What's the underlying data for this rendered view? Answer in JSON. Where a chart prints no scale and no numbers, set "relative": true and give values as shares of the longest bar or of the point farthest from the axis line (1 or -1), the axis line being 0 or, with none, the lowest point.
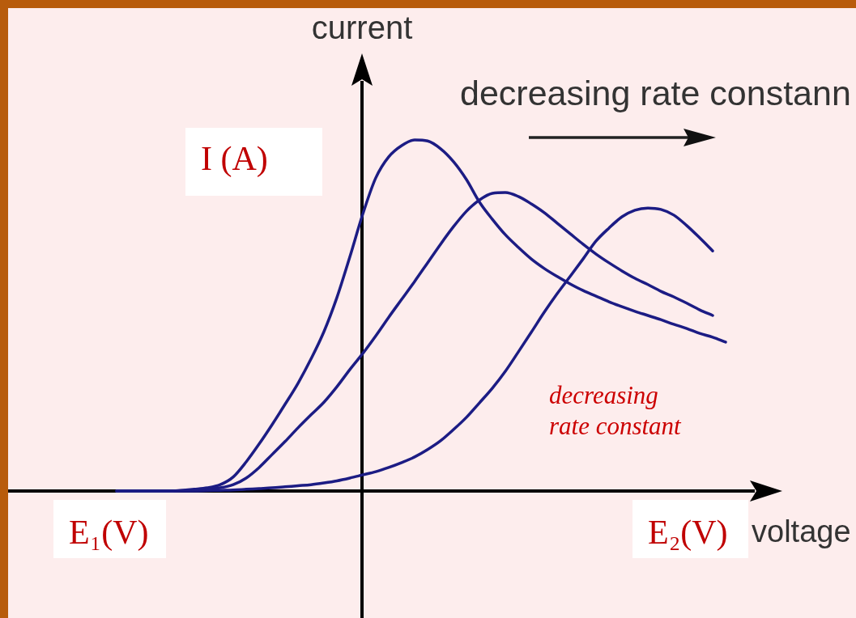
{
  "chart_data": {
    "type": "line",
    "relative": true,
    "xlabel": "voltage",
    "ylabel": "current",
    "marker": "none",
    "tick_labels": false,
    "annotations": [
      "decreasing rate constann",
      "I (A)",
      "E₁(V)",
      "E₂(V)",
      "decreasing rate constant"
    ],
    "categories": [
      null,
      null,
      null,
      null,
      null,
      null,
      null,
      null,
      null,
      null,
      null,
      null,
      null,
      null,
      null,
      null,
      null,
      null,
      null,
      null,
      null,
      null,
      null,
      null,
      null,
      null,
      null,
      null,
      null,
      null,
      null,
      null,
      null,
      null,
      null,
      null,
      null,
      null,
      null,
      null,
      null,
      null,
      null,
      null,
      null,
      null,
      null,
      null
    ],
    "series": [
      {
        "color": "#1c1c84",
        "values": [
          0,
          0,
          0,
          0,
          0,
          0.002,
          0.005,
          0.009,
          0.018,
          0.04,
          0.083,
          0.134,
          0.189,
          0.247,
          0.307,
          0.376,
          0.454,
          0.551,
          0.667,
          0.789,
          0.892,
          0.952,
          0.984,
          1.0,
          0.997,
          0.975,
          0.938,
          0.887,
          0.823,
          0.774,
          0.73,
          0.694,
          0.661,
          0.634,
          0.611,
          0.59,
          0.571,
          0.555,
          0.539,
          0.525,
          0.512,
          0.5,
          0.488,
          0.475,
          0.463,
          0.449,
          0.438,
          0.424
        ]
      },
      {
        "color": "#1c1c84",
        "values": [
          0,
          0,
          0,
          0,
          0,
          0.001,
          0.002,
          0.005,
          0.009,
          0.018,
          0.037,
          0.067,
          0.104,
          0.141,
          0.18,
          0.217,
          0.253,
          0.297,
          0.346,
          0.392,
          0.442,
          0.495,
          0.546,
          0.597,
          0.65,
          0.703,
          0.753,
          0.797,
          0.829,
          0.848,
          0.85,
          0.839,
          0.818,
          0.793,
          0.763,
          0.733,
          0.703,
          0.675,
          0.65,
          0.627,
          0.606,
          0.588,
          0.569,
          0.553,
          0.535,
          0.516,
          0.5,
          null
        ]
      },
      {
        "color": "#1c1c84",
        "values": [
          0,
          0,
          0,
          0,
          0,
          0,
          0,
          0.001,
          0.002,
          0.003,
          0.005,
          0.007,
          0.009,
          0.012,
          0.015,
          0.018,
          0.023,
          0.029,
          0.037,
          0.046,
          0.055,
          0.067,
          0.081,
          0.097,
          0.118,
          0.143,
          0.175,
          0.21,
          0.251,
          0.293,
          0.341,
          0.396,
          0.452,
          0.509,
          0.562,
          0.611,
          0.661,
          0.712,
          0.749,
          0.781,
          0.8,
          0.806,
          0.802,
          0.786,
          0.756,
          0.721,
          0.684,
          null
        ]
      }
    ]
  }
}
